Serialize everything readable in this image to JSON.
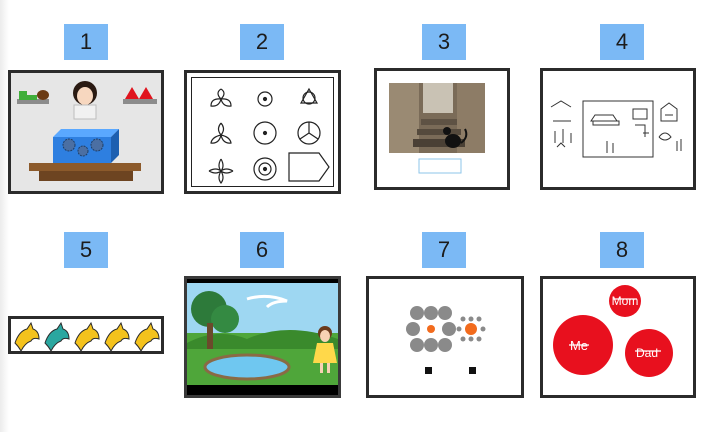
{
  "labels": [
    "1",
    "2",
    "3",
    "4",
    "5",
    "6",
    "7",
    "8"
  ],
  "panel8": {
    "bubble_top": "Mom",
    "bubble_left": "Me",
    "bubble_right": "Dad"
  },
  "colors": {
    "label_bg": "#7bb9f5",
    "frame": "#2b2b2b",
    "bubble_red": "#e8101e",
    "dino_yellow": "#f4c21c",
    "dino_teal": "#2aa7a0",
    "dot_gray": "#8a8a8a",
    "dot_orange": "#f26b1d"
  },
  "icons": {
    "panel1": "child-with-gear-box-icon",
    "panel2": "shape-matching-grid-icon",
    "panel3": "cat-on-stone-steps-photo",
    "panel4": "line-drawing-scene-icon",
    "panel5": "dinosaur-row-icon",
    "panel6": "cartoon-girl-by-pond-icon",
    "panel7": "dot-cluster-comparison-icon",
    "panel8": "family-bubbles-icon"
  }
}
